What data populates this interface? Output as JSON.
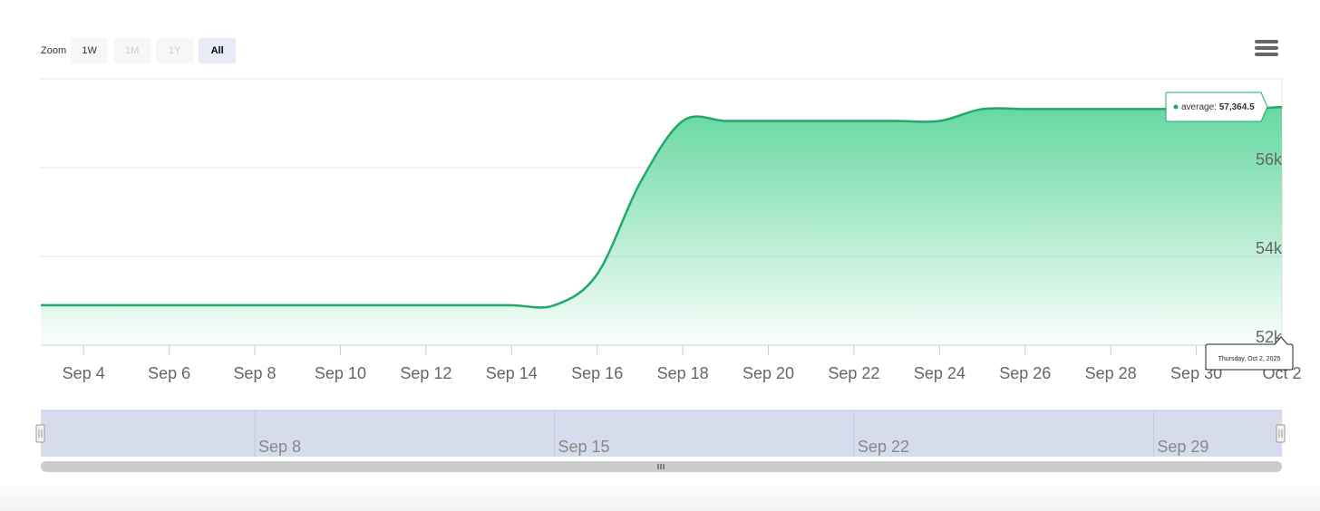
{
  "zoom": {
    "label": "Zoom",
    "buttons": [
      {
        "label": "1W",
        "state": "normal"
      },
      {
        "label": "1M",
        "state": "disabled"
      },
      {
        "label": "1Y",
        "state": "disabled"
      },
      {
        "label": "All",
        "state": "selected"
      }
    ]
  },
  "menu": {
    "icon": "hamburger-menu-icon"
  },
  "tooltip": {
    "series_label": "average",
    "value_text": "57,364.5",
    "date_text": "Thursday, Oct 2, 2025"
  },
  "navigator": {
    "labels": [
      "Sep 8",
      "Sep 15",
      "Sep 22",
      "Sep 29"
    ],
    "handle_icon": "drag-handle-icon",
    "scrollbar_grip_icon": "grip-icon"
  },
  "colors": {
    "line": "#22a86b",
    "area_top": "#5ed69c",
    "grid": "#e6e6e6",
    "navigator_mask": "#d6dcec",
    "scrollbar": "#cccccc"
  },
  "chart_data": {
    "type": "area",
    "title": "",
    "xlabel": "",
    "ylabel": "",
    "x_tick_labels": [
      "Sep 4",
      "Sep 6",
      "Sep 8",
      "Sep 10",
      "Sep 12",
      "Sep 14",
      "Sep 16",
      "Sep 18",
      "Sep 20",
      "Sep 22",
      "Sep 24",
      "Sep 26",
      "Sep 28",
      "Sep 30",
      "Oct 2"
    ],
    "y_tick_labels": [
      "52k",
      "54k",
      "56k"
    ],
    "ylim": [
      52000,
      58000
    ],
    "xlim": [
      "2025-09-03",
      "2025-10-02"
    ],
    "grid": true,
    "series": [
      {
        "name": "average",
        "x": [
          "2025-09-03",
          "2025-09-04",
          "2025-09-05",
          "2025-09-06",
          "2025-09-07",
          "2025-09-08",
          "2025-09-09",
          "2025-09-10",
          "2025-09-11",
          "2025-09-12",
          "2025-09-13",
          "2025-09-14",
          "2025-09-15",
          "2025-09-16",
          "2025-09-17",
          "2025-09-18",
          "2025-09-19",
          "2025-09-20",
          "2025-09-21",
          "2025-09-22",
          "2025-09-23",
          "2025-09-24",
          "2025-09-25",
          "2025-09-26",
          "2025-09-27",
          "2025-09-28",
          "2025-09-29",
          "2025-09-30",
          "2025-10-01",
          "2025-10-02"
        ],
        "y": [
          52900,
          52900,
          52900,
          52900,
          52900,
          52900,
          52900,
          52900,
          52900,
          52900,
          52900,
          52900,
          52900,
          53600,
          55650,
          57050,
          57050,
          57050,
          57050,
          57050,
          57050,
          57050,
          57320,
          57320,
          57320,
          57320,
          57320,
          57320,
          57320,
          57364.5
        ]
      }
    ]
  }
}
